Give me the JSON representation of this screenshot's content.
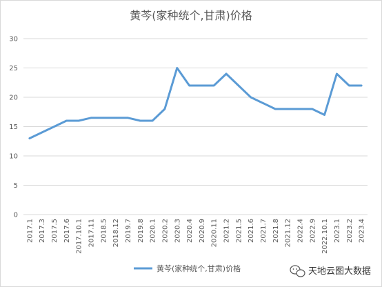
{
  "chart_data": {
    "type": "line",
    "title": "黄芩(家种统个,甘肃)价格",
    "xlabel": "",
    "ylabel": "",
    "ylim": [
      0,
      30
    ],
    "yticks": [
      0,
      5,
      10,
      15,
      20,
      25,
      30
    ],
    "grid": true,
    "legend_position": "bottom",
    "categories": [
      "2017.1",
      "2017.3",
      "2017.5",
      "2017.6",
      "2017.10.1",
      "2017.11",
      "2018.5",
      "2018.12",
      "2019.7",
      "2019.8",
      "2020.1",
      "2020.2",
      "2020.3",
      "2020.4",
      "2020.9",
      "2020.11",
      "2021.2",
      "2021.5",
      "2021.6",
      "2021.7",
      "2021.8",
      "2021.12",
      "2022.4",
      "2022.9",
      "2022.10.1",
      "2023.1",
      "2023.2",
      "2023.4"
    ],
    "series": [
      {
        "name": "黄芩(家种统个,甘肃)价格",
        "color": "#5b9bd5",
        "values": [
          13,
          14,
          15,
          16,
          16,
          16.5,
          16.5,
          16.5,
          16.5,
          16,
          16,
          18,
          25,
          22,
          22,
          22,
          24,
          22,
          20,
          19,
          18,
          18,
          18,
          18,
          17,
          24,
          22,
          22
        ]
      }
    ]
  },
  "watermark": {
    "icon": "wechat-icon",
    "text": "天地云图大数据"
  }
}
